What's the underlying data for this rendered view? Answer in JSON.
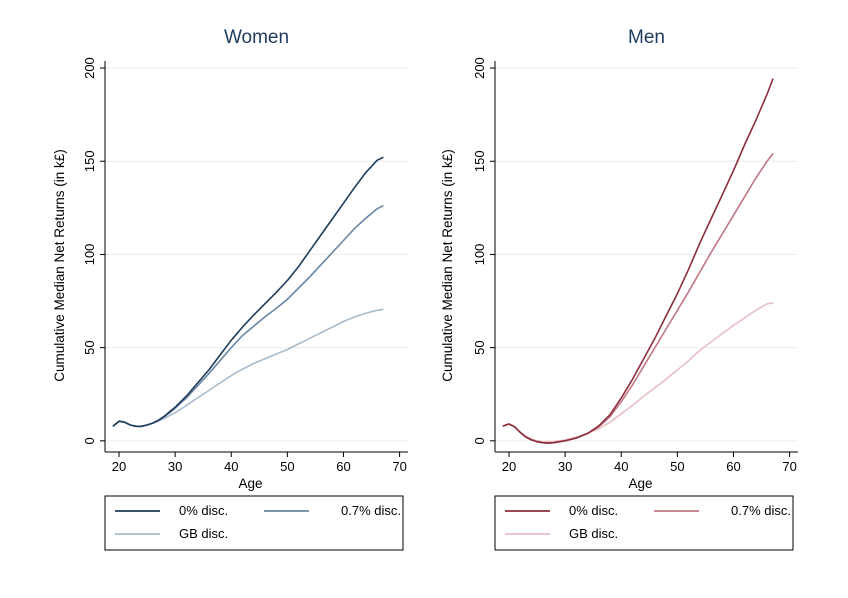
{
  "chart_data": [
    {
      "type": "line",
      "title": "Women",
      "xlabel": "Age",
      "ylabel": "Cumulative Median Net Returns (in k£)",
      "xlim": [
        17.5,
        71.5
      ],
      "ylim": [
        -6,
        207
      ],
      "xticks": [
        20,
        30,
        40,
        50,
        60,
        70
      ],
      "yticks": [
        0,
        50,
        100,
        150,
        200
      ],
      "grid": true,
      "legend_position": "bottom",
      "series": [
        {
          "name": "0% disc.",
          "color": "#1f3c5c",
          "x": [
            19,
            20,
            21,
            22,
            23,
            24,
            25,
            26,
            27,
            28,
            29,
            30,
            32,
            34,
            36,
            38,
            40,
            42,
            44,
            46,
            48,
            50,
            52,
            54,
            56,
            58,
            60,
            62,
            64,
            66,
            67
          ],
          "y": [
            8,
            10.5,
            10,
            8.5,
            7.8,
            7.8,
            8.5,
            9.5,
            11,
            13,
            15.5,
            18,
            24,
            31,
            38,
            46,
            54,
            61,
            67.5,
            73.5,
            79.5,
            86,
            93.5,
            102,
            110.5,
            119,
            127.5,
            136,
            144,
            150.5,
            152
          ]
        },
        {
          "name": "0.7% disc.",
          "color": "#6b86a3",
          "x": [
            19,
            20,
            21,
            22,
            23,
            24,
            25,
            26,
            27,
            28,
            29,
            30,
            32,
            34,
            36,
            38,
            40,
            42,
            44,
            46,
            48,
            50,
            52,
            54,
            56,
            58,
            60,
            62,
            64,
            66,
            67
          ],
          "y": [
            8,
            10.5,
            10,
            8.5,
            7.8,
            7.8,
            8.5,
            9.5,
            11,
            12.8,
            15,
            17.5,
            23,
            29.5,
            36,
            43,
            50,
            56.5,
            61.5,
            66.5,
            71,
            76,
            82,
            88,
            94.5,
            101,
            107.5,
            114,
            119.5,
            124.5,
            126
          ]
        },
        {
          "name": "GB disc.",
          "color": "#a9bccf",
          "x": [
            19,
            20,
            21,
            22,
            23,
            24,
            25,
            26,
            27,
            28,
            29,
            30,
            32,
            34,
            36,
            38,
            40,
            42,
            44,
            46,
            48,
            50,
            52,
            54,
            56,
            58,
            60,
            62,
            64,
            66,
            67
          ],
          "y": [
            8,
            10.5,
            10,
            8.5,
            7.8,
            7.8,
            8.5,
            9.5,
            10.5,
            12,
            13.5,
            15,
            19,
            23,
            27,
            31,
            35,
            38.5,
            41.5,
            44,
            46.5,
            49,
            52,
            55,
            58,
            61,
            64,
            66.5,
            68.5,
            70,
            70.5
          ]
        }
      ]
    },
    {
      "type": "line",
      "title": "Men",
      "xlabel": "Age",
      "ylabel": "Cumulative Median Net Returns (in k£)",
      "xlim": [
        17.5,
        71.5
      ],
      "ylim": [
        -6,
        207
      ],
      "xticks": [
        20,
        30,
        40,
        50,
        60,
        70
      ],
      "yticks": [
        0,
        50,
        100,
        150,
        200
      ],
      "grid": true,
      "legend_position": "bottom",
      "series": [
        {
          "name": "0% disc.",
          "color": "#8b2e3c",
          "x": [
            19,
            20,
            21,
            22,
            23,
            24,
            25,
            26,
            27,
            28,
            29,
            30,
            32,
            34,
            36,
            38,
            40,
            42,
            44,
            46,
            48,
            50,
            52,
            54,
            56,
            58,
            60,
            62,
            64,
            66,
            67
          ],
          "y": [
            8,
            9,
            7.5,
            4.5,
            2,
            0.5,
            -0.5,
            -1,
            -1.2,
            -1,
            -0.5,
            0,
            1.5,
            4,
            8,
            14,
            23,
            33,
            44,
            55,
            67,
            79,
            92,
            106,
            119,
            132,
            145,
            159,
            172,
            186,
            194
          ]
        },
        {
          "name": "0.7% disc.",
          "color": "#c07882",
          "x": [
            19,
            20,
            21,
            22,
            23,
            24,
            25,
            26,
            27,
            28,
            29,
            30,
            32,
            34,
            36,
            38,
            40,
            42,
            44,
            46,
            48,
            50,
            52,
            54,
            56,
            58,
            60,
            62,
            64,
            66,
            67
          ],
          "y": [
            8,
            9,
            7.5,
            4.5,
            2,
            0.5,
            -0.5,
            -1,
            -1.2,
            -1,
            -0.5,
            0,
            1.5,
            4,
            7.5,
            13,
            21,
            30,
            40,
            50,
            60,
            70,
            80,
            90.5,
            101,
            111,
            121,
            131,
            141,
            150,
            154
          ]
        },
        {
          "name": "GB disc.",
          "color": "#e8bfc4",
          "x": [
            19,
            20,
            21,
            22,
            23,
            24,
            25,
            26,
            27,
            28,
            29,
            30,
            32,
            34,
            36,
            38,
            40,
            42,
            44,
            46,
            48,
            50,
            52,
            54,
            56,
            58,
            60,
            62,
            64,
            66,
            67
          ],
          "y": [
            8,
            9,
            7.5,
            4.5,
            2.5,
            1,
            0,
            -0.5,
            -0.5,
            -0.3,
            0,
            0.5,
            2,
            4,
            6.5,
            10,
            14.5,
            19,
            24,
            28.5,
            33,
            38,
            43,
            48.5,
            53,
            57.5,
            62,
            66,
            70,
            73.5,
            74
          ]
        }
      ]
    }
  ]
}
